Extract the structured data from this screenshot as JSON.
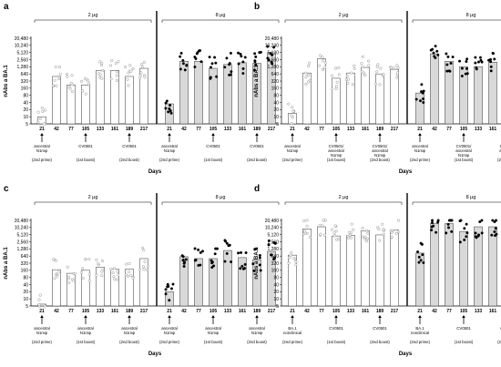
{
  "chart_data": [
    {
      "panel": "a",
      "type": "bar",
      "ylabel": "nAbs a BA.1",
      "xlabel": "Days",
      "yscale": "log2",
      "ylim": [
        5,
        20480
      ],
      "yticks": [
        "5",
        "10",
        "20",
        "40",
        "80",
        "160",
        "320",
        "640",
        "1,280",
        "2,560",
        "5,120",
        "10,240",
        "20,480"
      ],
      "categories": [
        "21",
        "42",
        "77",
        "105",
        "133",
        "161",
        "189",
        "217"
      ],
      "groups": [
        {
          "name": "2 µg",
          "fill": "#ffffff",
          "marker": "open",
          "values": [
            10,
            500,
            220,
            220,
            900,
            900,
            500,
            1100
          ]
        },
        {
          "name": "8 µg",
          "fill": "#d9d9d9",
          "marker": "filled",
          "values": [
            35,
            2200,
            2200,
            1100,
            1600,
            1900,
            1800,
            5000
          ]
        }
      ],
      "annotations": [
        {
          "at": "21",
          "lines": [
            "ancestral",
            "N1mψ",
            "",
            "(2nd prime)"
          ]
        },
        {
          "at": "105",
          "lines": [
            "CV0501",
            "",
            "",
            "(1st boost)"
          ]
        },
        {
          "at": "189",
          "lines": [
            "CV0501",
            "",
            "",
            "(2nd boost)"
          ]
        }
      ]
    },
    {
      "panel": "b",
      "type": "bar",
      "ylabel": "nAbs a BA.1",
      "xlabel": "Days",
      "yscale": "log2",
      "ylim": [
        5,
        20480
      ],
      "yticks": [
        "5",
        "10",
        "20",
        "40",
        "80",
        "160",
        "320",
        "640",
        "1,280",
        "2,560",
        "5,120",
        "10,240",
        "20,480"
      ],
      "categories": [
        "21",
        "42",
        "77",
        "105",
        "133",
        "161",
        "189",
        "217"
      ],
      "groups": [
        {
          "name": "2 µg",
          "fill": "#ffffff",
          "marker": "open",
          "values": [
            14,
            700,
            2800,
            420,
            700,
            1200,
            640,
            1000
          ]
        },
        {
          "name": "8 µg",
          "fill": "#d9d9d9",
          "marker": "filled",
          "values": [
            100,
            4500,
            2200,
            1300,
            1300,
            2000,
            1300,
            3500
          ]
        }
      ],
      "annotations": [
        {
          "at": "21",
          "lines": [
            "ancestral",
            "N1mψ",
            "",
            "(2nd prime)"
          ]
        },
        {
          "at": "105",
          "lines": [
            "CV0501/",
            "ancestral",
            "N1mψ",
            "(1st boost)"
          ]
        },
        {
          "at": "189",
          "lines": [
            "CV0501/",
            "ancestral",
            "N1mψ",
            "(2nd boost)"
          ]
        }
      ]
    },
    {
      "panel": "c",
      "type": "bar",
      "ylabel": "nAbs a BA.1",
      "xlabel": "Days",
      "yscale": "log2",
      "ylim": [
        5,
        20480
      ],
      "yticks": [
        "5",
        "10",
        "20",
        "40",
        "80",
        "160",
        "320",
        "640",
        "1,280",
        "2,560",
        "5,120",
        "10,240",
        "20,480"
      ],
      "categories": [
        "21",
        "42",
        "77",
        "105",
        "133",
        "161",
        "189",
        "217"
      ],
      "groups": [
        {
          "name": "2 µg",
          "fill": "#ffffff",
          "marker": "open",
          "values": [
            6,
            170,
            120,
            160,
            220,
            180,
            180,
            500
          ]
        },
        {
          "name": "8 µg",
          "fill": "#d9d9d9",
          "marker": "filled",
          "values": [
            20,
            600,
            500,
            500,
            1100,
            550,
            450,
            1000
          ]
        }
      ],
      "annotations": [
        {
          "at": "21",
          "lines": [
            "ancestral",
            "N1mψ",
            "",
            "(2nd prime)"
          ]
        },
        {
          "at": "105",
          "lines": [
            "ancestral",
            "N1mψ",
            "",
            "(1st boost)"
          ]
        },
        {
          "at": "189",
          "lines": [
            "ancestral",
            "N1mψ",
            "",
            "(2nd boost)"
          ]
        }
      ]
    },
    {
      "panel": "d",
      "type": "bar",
      "ylabel": "nAbs a BA.1",
      "xlabel": "Days",
      "yscale": "log2",
      "ylim": [
        5,
        20480
      ],
      "yticks": [
        "5",
        "10",
        "20",
        "40",
        "80",
        "160",
        "320",
        "640",
        "1,280",
        "2,560",
        "5,120",
        "10,240",
        "20,480"
      ],
      "categories": [
        "21",
        "42",
        "77",
        "105",
        "133",
        "161",
        "189",
        "217"
      ],
      "groups": [
        {
          "name": "2 µg",
          "fill": "#ffffff",
          "marker": "open",
          "values": [
            700,
            9000,
            11000,
            4500,
            4800,
            7500,
            5000,
            8000
          ]
        },
        {
          "name": "8 µg",
          "fill": "#d9d9d9",
          "marker": "filled",
          "values": [
            850,
            15000,
            15000,
            7000,
            11000,
            11000,
            7500,
            17000
          ]
        }
      ],
      "annotations": [
        {
          "at": "21",
          "lines": [
            "BA.1",
            "nonclinical",
            "",
            "(2nd prime)"
          ]
        },
        {
          "at": "105",
          "lines": [
            "CV0501",
            "",
            "",
            "(1st boost)"
          ]
        },
        {
          "at": "189",
          "lines": [
            "CV0501",
            "",
            "",
            "(2nd boost)"
          ]
        }
      ]
    }
  ]
}
